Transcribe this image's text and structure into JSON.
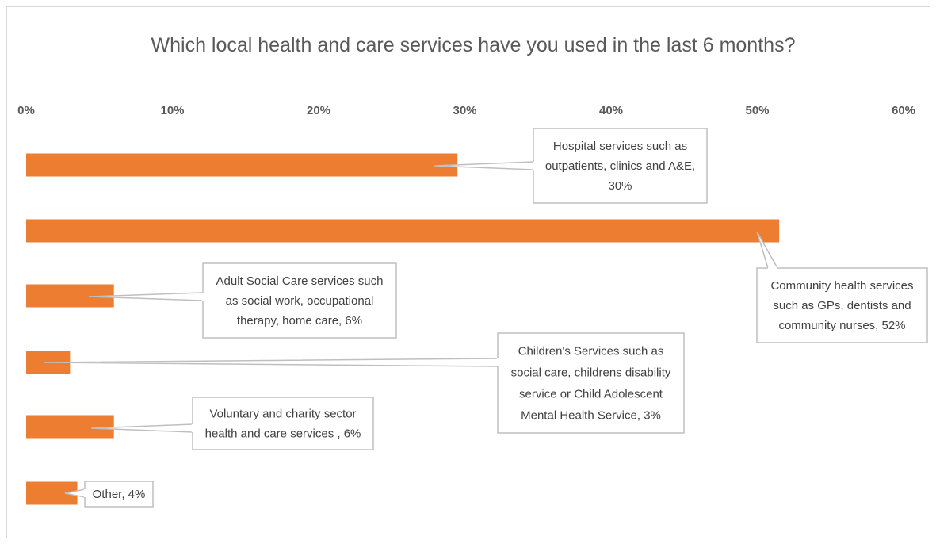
{
  "chart_data": {
    "type": "bar",
    "orientation": "horizontal",
    "title": "Which local health and care services have you used in the last 6 months?",
    "xlabel": "",
    "ylabel": "",
    "xlim": [
      0,
      60
    ],
    "x_ticks": [
      "0%",
      "10%",
      "20%",
      "30%",
      "40%",
      "50%",
      "60%"
    ],
    "axis_position": "top",
    "grid": false,
    "legend": "none",
    "bar_color": "#ed7d31",
    "categories": [
      "Hospital services such as outpatients, clinics and A&E",
      "Community health services such as GPs, dentists and community nurses",
      "Adult Social Care services such as social work, occupational therapy, home care",
      "Children's Services such as social care, childrens disability service or Child Adolescent Mental Health Service",
      "Voluntary and charity sector health and care services",
      "Other"
    ],
    "values": [
      29.5,
      51.5,
      6,
      3,
      6,
      3.5
    ],
    "data_labels": [
      [
        "Hospital services such as",
        "outpatients, clinics and A&E,",
        "30%"
      ],
      [
        "Community health services",
        "such as GPs, dentists and",
        "community nurses, 52%"
      ],
      [
        "Adult Social Care services such",
        "as social work, occupational",
        "therapy, home care, 6%"
      ],
      [
        "Children's Services such as",
        "social care, childrens disability",
        "service or Child Adolescent",
        "Mental Health Service, 3%"
      ],
      [
        "Voluntary and charity sector",
        "health and care services  , 6%"
      ],
      [
        "Other, 4%"
      ]
    ]
  }
}
